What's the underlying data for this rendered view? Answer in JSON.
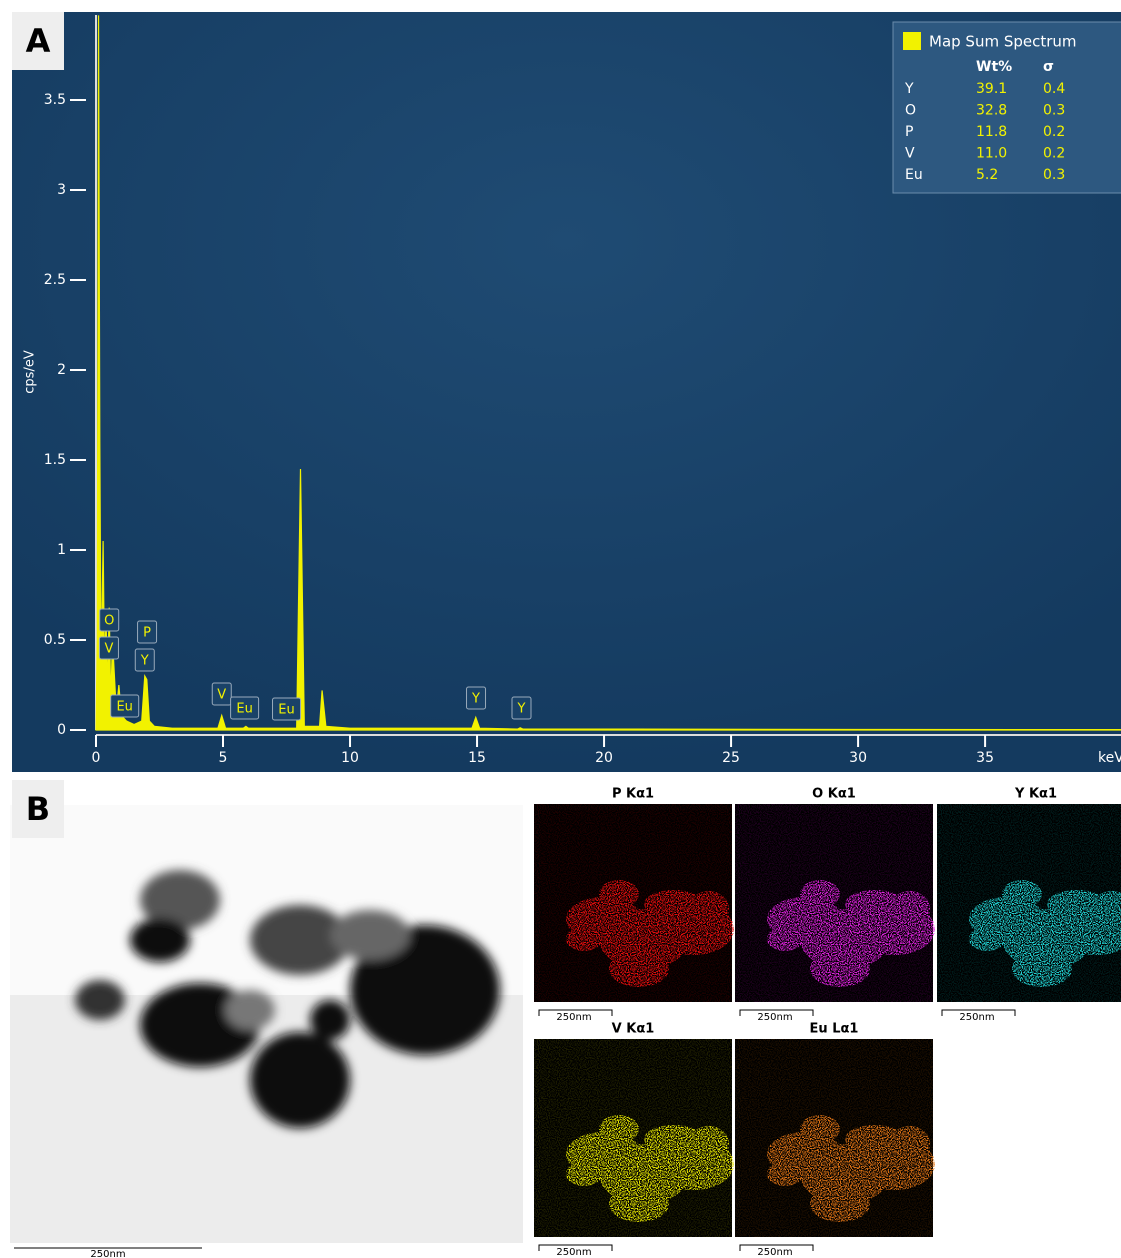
{
  "panel_labels": [
    "A",
    "B"
  ],
  "chart_data": {
    "type": "area",
    "y_label": "cps/eV",
    "x_label": "keV",
    "xlim": [
      0,
      40.35
    ],
    "ylim": [
      0,
      4
    ],
    "xticks": [
      0,
      5,
      10,
      15,
      20,
      25,
      30,
      35
    ],
    "yticks": [
      0,
      0.5,
      1,
      1.5,
      2,
      2.5,
      3,
      3.5
    ],
    "series": [
      {
        "name": "Map Sum Spectrum",
        "color": "#f2f200",
        "x": [
          0,
          0.05,
          0.1,
          0.15,
          0.2,
          0.28,
          0.33,
          0.4,
          0.45,
          0.52,
          0.58,
          0.65,
          0.8,
          0.9,
          1.0,
          1.2,
          1.5,
          1.8,
          1.92,
          2.0,
          2.1,
          2.3,
          3,
          4.8,
          4.95,
          5.1,
          5.8,
          5.9,
          6.0,
          7.9,
          8.05,
          8.2,
          8.8,
          8.9,
          9.05,
          10,
          14.8,
          14.95,
          15.1,
          16.6,
          16.7,
          16.8,
          20,
          30,
          40.35
        ],
        "values": [
          0,
          0.5,
          3.97,
          1.6,
          0.3,
          1.05,
          0.4,
          0.6,
          0.2,
          0.68,
          0.15,
          0.5,
          0.1,
          0.25,
          0.08,
          0.05,
          0.03,
          0.05,
          0.3,
          0.28,
          0.05,
          0.02,
          0.01,
          0.01,
          0.08,
          0.01,
          0.01,
          0.02,
          0.01,
          0.01,
          1.45,
          0.02,
          0.02,
          0.22,
          0.02,
          0.01,
          0.01,
          0.07,
          0.01,
          0.005,
          0.012,
          0.005,
          0.005,
          0.003,
          0.002
        ]
      }
    ],
    "peak_labels": [
      {
        "text": "O",
        "x": 0.52
      },
      {
        "text": "V",
        "x": 0.51
      },
      {
        "text": "P",
        "x": 2.01
      },
      {
        "text": "Y",
        "x": 1.92
      },
      {
        "text": "Eu",
        "x": 1.13
      },
      {
        "text": "V",
        "x": 4.95
      },
      {
        "text": "Eu",
        "x": 5.85
      },
      {
        "text": "Eu",
        "x": 7.5
      },
      {
        "text": "Y",
        "x": 14.96
      },
      {
        "text": "Y",
        "x": 16.75
      }
    ],
    "legend_table": {
      "header": [
        "Wt%",
        "σ"
      ],
      "rows": [
        [
          "Y",
          "39.1",
          "0.4"
        ],
        [
          "O",
          "32.8",
          "0.3"
        ],
        [
          "P",
          "11.8",
          "0.2"
        ],
        [
          "V",
          "11.0",
          "0.2"
        ],
        [
          "Eu",
          "5.2",
          "0.3"
        ]
      ]
    }
  },
  "tem_scale": "250nm",
  "maps": [
    {
      "title": "P Kα1",
      "color": "#e81010",
      "scale": "250nm"
    },
    {
      "title": "O Kα1",
      "color": "#e020e0",
      "scale": "250nm"
    },
    {
      "title": "Y Kα1",
      "color": "#20d4d4",
      "scale": "250nm"
    },
    {
      "title": "V Kα1",
      "color": "#e8e800",
      "scale": "250nm"
    },
    {
      "title": "Eu Lα1",
      "color": "#e07414",
      "scale": "250nm"
    }
  ]
}
